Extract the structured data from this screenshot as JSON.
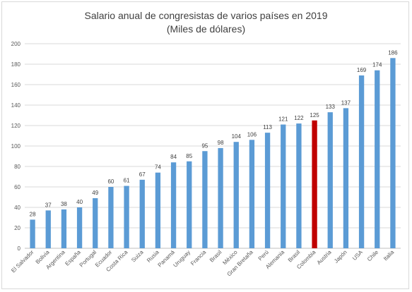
{
  "chart_data": {
    "type": "bar",
    "title": "Salario anual de congresistas de varios países en 2019",
    "subtitle": "(Miles de dólares)",
    "xlabel": "",
    "ylabel": "",
    "ylim": [
      0,
      200
    ],
    "yticks": [
      0,
      20,
      40,
      60,
      80,
      100,
      120,
      140,
      160,
      180,
      200
    ],
    "grid": true,
    "legend": "none",
    "categories": [
      "El Salvador",
      "Bolivia",
      "Argentina",
      "España",
      "Portugal",
      "Ecuador",
      "Costa Rica",
      "Suiza",
      "Rusia",
      "Panamá",
      "Uruguay",
      "Francia",
      "Brasil",
      "México",
      "Gran Bretaña",
      "Perú",
      "Alemania",
      "Brasil",
      "Colombia",
      "Austria",
      "Japón",
      "USA",
      "Chile",
      "Italia"
    ],
    "values": [
      28,
      37,
      38,
      40,
      49,
      60,
      61,
      67,
      74,
      84,
      85,
      95,
      98,
      104,
      106,
      113,
      121,
      122,
      125,
      133,
      137,
      169,
      174,
      186
    ],
    "colors": {
      "default": "#5b9bd5",
      "highlight": "#c00000",
      "highlight_category": "Colombia",
      "gridline": "#d9d9d9",
      "axis": "#bfbfbf"
    }
  }
}
